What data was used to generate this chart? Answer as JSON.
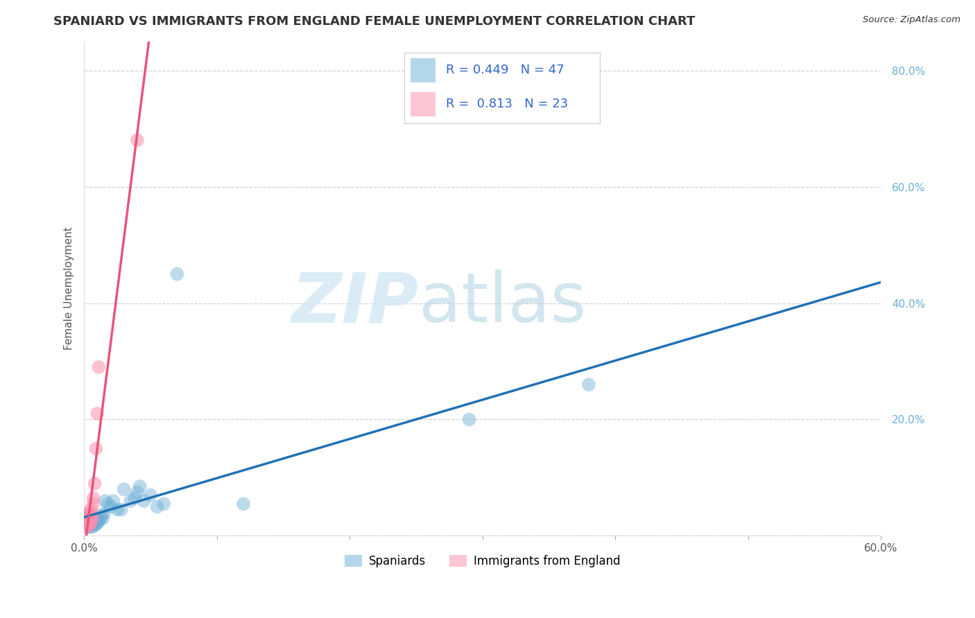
{
  "title": "SPANIARD VS IMMIGRANTS FROM ENGLAND FEMALE UNEMPLOYMENT CORRELATION CHART",
  "source": "Source: ZipAtlas.com",
  "ylabel": "Female Unemployment",
  "xlim": [
    0.0,
    0.6
  ],
  "ylim": [
    0.0,
    0.85
  ],
  "xticks": [
    0.0,
    0.1,
    0.2,
    0.3,
    0.4,
    0.5,
    0.6
  ],
  "xtick_labels": [
    "0.0%",
    "",
    "",
    "",
    "",
    "",
    "60.0%"
  ],
  "yticks": [
    0.0,
    0.2,
    0.4,
    0.6,
    0.8
  ],
  "ytick_labels": [
    "",
    "20.0%",
    "40.0%",
    "60.0%",
    "80.0%"
  ],
  "background_color": "#ffffff",
  "grid_color": "#cccccc",
  "legend_R1": "0.449",
  "legend_N1": "47",
  "legend_R2": "0.813",
  "legend_N2": "23",
  "series1_color": "#6baed6",
  "series2_color": "#fc8eac",
  "series1_name": "Spaniards",
  "series2_name": "Immigrants from England",
  "spaniards_x": [
    0.001,
    0.002,
    0.002,
    0.003,
    0.003,
    0.003,
    0.004,
    0.004,
    0.004,
    0.005,
    0.005,
    0.005,
    0.006,
    0.006,
    0.006,
    0.007,
    0.007,
    0.008,
    0.008,
    0.009,
    0.009,
    0.01,
    0.01,
    0.011,
    0.012,
    0.013,
    0.014,
    0.015,
    0.016,
    0.018,
    0.02,
    0.022,
    0.025,
    0.028,
    0.03,
    0.035,
    0.038,
    0.04,
    0.042,
    0.045,
    0.05,
    0.055,
    0.06,
    0.07,
    0.12,
    0.29,
    0.38
  ],
  "spaniards_y": [
    0.02,
    0.015,
    0.025,
    0.018,
    0.022,
    0.03,
    0.015,
    0.02,
    0.028,
    0.018,
    0.025,
    0.032,
    0.02,
    0.025,
    0.015,
    0.022,
    0.03,
    0.018,
    0.025,
    0.02,
    0.028,
    0.022,
    0.03,
    0.025,
    0.028,
    0.035,
    0.03,
    0.038,
    0.06,
    0.055,
    0.05,
    0.06,
    0.045,
    0.045,
    0.08,
    0.06,
    0.065,
    0.075,
    0.085,
    0.06,
    0.07,
    0.05,
    0.055,
    0.45,
    0.055,
    0.2,
    0.26
  ],
  "england_x": [
    0.001,
    0.001,
    0.002,
    0.002,
    0.002,
    0.003,
    0.003,
    0.003,
    0.004,
    0.004,
    0.004,
    0.005,
    0.005,
    0.005,
    0.006,
    0.006,
    0.007,
    0.007,
    0.008,
    0.009,
    0.01,
    0.011,
    0.04
  ],
  "england_y": [
    0.018,
    0.025,
    0.015,
    0.022,
    0.03,
    0.018,
    0.025,
    0.035,
    0.02,
    0.03,
    0.04,
    0.022,
    0.035,
    0.045,
    0.028,
    0.038,
    0.055,
    0.065,
    0.09,
    0.15,
    0.21,
    0.29,
    0.68
  ],
  "title_fontsize": 13,
  "axis_label_fontsize": 11,
  "tick_fontsize": 11
}
